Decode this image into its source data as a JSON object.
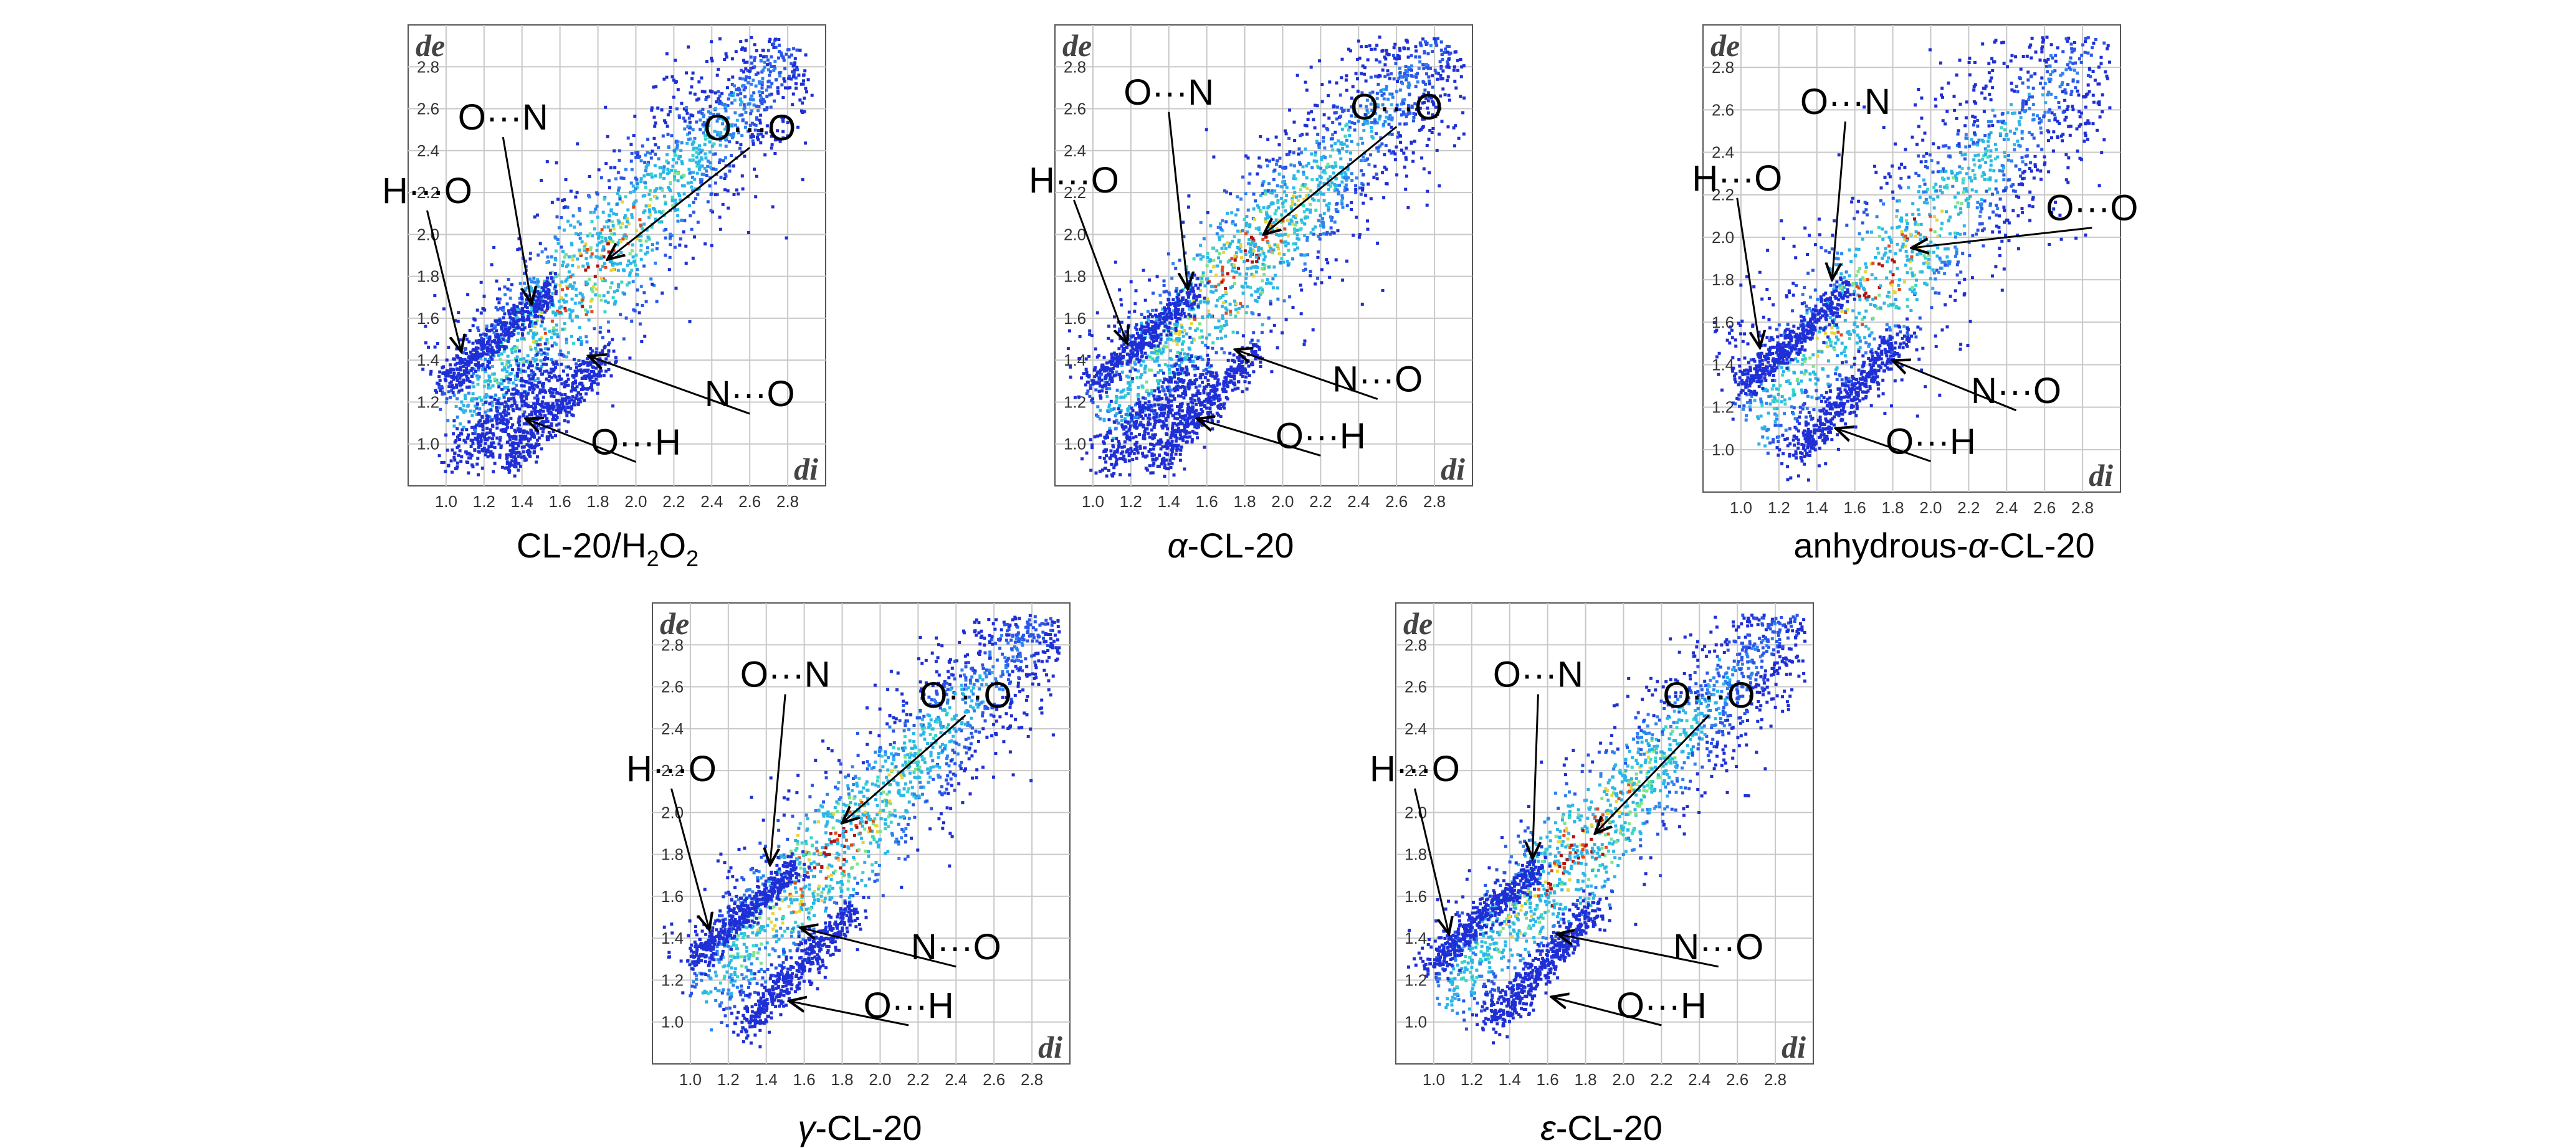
{
  "chart_data": [
    {
      "type": "heatmap",
      "caption_parts": [
        "CL-20/H",
        "2",
        "O",
        "2"
      ],
      "xlabel": "di",
      "ylabel": "de",
      "xlim": [
        0.8,
        3.0
      ],
      "ylim": [
        0.8,
        3.0
      ],
      "x_ticks": [
        "1.0",
        "1.2",
        "1.4",
        "1.6",
        "1.8",
        "2.0",
        "2.2",
        "2.4",
        "2.6",
        "2.8"
      ],
      "y_ticks": [
        "1.0",
        "1.2",
        "1.4",
        "1.6",
        "1.8",
        "2.0",
        "2.2",
        "2.4",
        "2.6",
        "2.8"
      ],
      "grid": true,
      "annotations": [
        {
          "label": "H···O",
          "text_at": [
            0.9,
            2.15
          ],
          "points_to": [
            1.08,
            1.44
          ]
        },
        {
          "label": "O···N",
          "text_at": [
            1.3,
            2.5
          ],
          "points_to": [
            1.45,
            1.67
          ]
        },
        {
          "label": "O···O",
          "text_at": [
            2.6,
            2.45
          ],
          "points_to": [
            1.85,
            1.88
          ]
        },
        {
          "label": "N···O",
          "text_at": [
            2.6,
            1.18
          ],
          "points_to": [
            1.75,
            1.42
          ]
        },
        {
          "label": "O···H",
          "text_at": [
            2.0,
            0.95
          ],
          "points_to": [
            1.42,
            1.12
          ]
        }
      ]
    },
    {
      "type": "heatmap",
      "caption_parts": [
        "α",
        "-CL-20"
      ],
      "xlabel": "di",
      "ylabel": "de",
      "xlim": [
        0.8,
        3.0
      ],
      "ylim": [
        0.8,
        3.0
      ],
      "x_ticks": [
        "1.0",
        "1.2",
        "1.4",
        "1.6",
        "1.8",
        "2.0",
        "2.2",
        "2.4",
        "2.6",
        "2.8"
      ],
      "y_ticks": [
        "1.0",
        "1.2",
        "1.4",
        "1.6",
        "1.8",
        "2.0",
        "2.2",
        "2.4",
        "2.6",
        "2.8"
      ],
      "grid": true,
      "annotations": [
        {
          "label": "H···O",
          "text_at": [
            0.9,
            2.2
          ],
          "points_to": [
            1.18,
            1.48
          ]
        },
        {
          "label": "O···N",
          "text_at": [
            1.4,
            2.62
          ],
          "points_to": [
            1.5,
            1.74
          ]
        },
        {
          "label": "O···O",
          "text_at": [
            2.6,
            2.55
          ],
          "points_to": [
            1.9,
            2.0
          ]
        },
        {
          "label": "N···O",
          "text_at": [
            2.5,
            1.25
          ],
          "points_to": [
            1.75,
            1.45
          ]
        },
        {
          "label": "O···H",
          "text_at": [
            2.2,
            0.98
          ],
          "points_to": [
            1.55,
            1.12
          ]
        }
      ]
    },
    {
      "type": "heatmap",
      "caption_parts": [
        "anhydrous-",
        "α",
        "-CL-20"
      ],
      "xlabel": "di",
      "ylabel": "de",
      "xlim": [
        0.8,
        3.0
      ],
      "ylim": [
        0.8,
        3.0
      ],
      "x_ticks": [
        "1.0",
        "1.2",
        "1.4",
        "1.6",
        "1.8",
        "2.0",
        "2.2",
        "2.4",
        "2.6",
        "2.8"
      ],
      "y_ticks": [
        "1.0",
        "1.2",
        "1.4",
        "1.6",
        "1.8",
        "2.0",
        "2.2",
        "2.4",
        "2.6",
        "2.8"
      ],
      "grid": true,
      "annotations": [
        {
          "label": "H···O",
          "text_at": [
            0.98,
            2.22
          ],
          "points_to": [
            1.1,
            1.48
          ]
        },
        {
          "label": "O···N",
          "text_at": [
            1.55,
            2.58
          ],
          "points_to": [
            1.48,
            1.8
          ]
        },
        {
          "label": "O···O",
          "text_at": [
            2.85,
            2.08
          ],
          "points_to": [
            1.9,
            1.95
          ]
        },
        {
          "label": "N···O",
          "text_at": [
            2.45,
            1.22
          ],
          "points_to": [
            1.8,
            1.42
          ]
        },
        {
          "label": "O···H",
          "text_at": [
            2.0,
            0.98
          ],
          "points_to": [
            1.5,
            1.1
          ]
        }
      ]
    },
    {
      "type": "heatmap",
      "caption_parts": [
        "γ",
        "-CL-20"
      ],
      "xlabel": "di",
      "ylabel": "de",
      "xlim": [
        0.8,
        3.0
      ],
      "ylim": [
        0.8,
        3.0
      ],
      "x_ticks": [
        "1.0",
        "1.2",
        "1.4",
        "1.6",
        "1.8",
        "2.0",
        "2.2",
        "2.4",
        "2.6",
        "2.8"
      ],
      "y_ticks": [
        "1.0",
        "1.2",
        "1.4",
        "1.6",
        "1.8",
        "2.0",
        "2.2",
        "2.4",
        "2.6",
        "2.8"
      ],
      "grid": true,
      "annotations": [
        {
          "label": "H···O",
          "text_at": [
            0.9,
            2.15
          ],
          "points_to": [
            1.1,
            1.44
          ]
        },
        {
          "label": "O···N",
          "text_at": [
            1.5,
            2.6
          ],
          "points_to": [
            1.42,
            1.75
          ]
        },
        {
          "label": "O···O",
          "text_at": [
            2.45,
            2.5
          ],
          "points_to": [
            1.8,
            1.95
          ]
        },
        {
          "label": "N···O",
          "text_at": [
            2.4,
            1.3
          ],
          "points_to": [
            1.58,
            1.45
          ]
        },
        {
          "label": "O···H",
          "text_at": [
            2.15,
            1.02
          ],
          "points_to": [
            1.52,
            1.1
          ]
        }
      ]
    },
    {
      "type": "heatmap",
      "caption_parts": [
        "ε",
        "-CL-20"
      ],
      "xlabel": "di",
      "ylabel": "de",
      "xlim": [
        0.8,
        3.0
      ],
      "ylim": [
        0.8,
        3.0
      ],
      "x_ticks": [
        "1.0",
        "1.2",
        "1.4",
        "1.6",
        "1.8",
        "2.0",
        "2.2",
        "2.4",
        "2.6",
        "2.8"
      ],
      "y_ticks": [
        "1.0",
        "1.2",
        "1.4",
        "1.6",
        "1.8",
        "2.0",
        "2.2",
        "2.4",
        "2.6",
        "2.8"
      ],
      "grid": true,
      "annotations": [
        {
          "label": "H···O",
          "text_at": [
            0.9,
            2.15
          ],
          "points_to": [
            1.08,
            1.42
          ]
        },
        {
          "label": "O···N",
          "text_at": [
            1.55,
            2.6
          ],
          "points_to": [
            1.52,
            1.78
          ]
        },
        {
          "label": "O···O",
          "text_at": [
            2.45,
            2.5
          ],
          "points_to": [
            1.85,
            1.9
          ]
        },
        {
          "label": "N···O",
          "text_at": [
            2.5,
            1.3
          ],
          "points_to": [
            1.65,
            1.42
          ]
        },
        {
          "label": "O···H",
          "text_at": [
            2.2,
            1.02
          ],
          "points_to": [
            1.62,
            1.12
          ]
        }
      ]
    }
  ]
}
